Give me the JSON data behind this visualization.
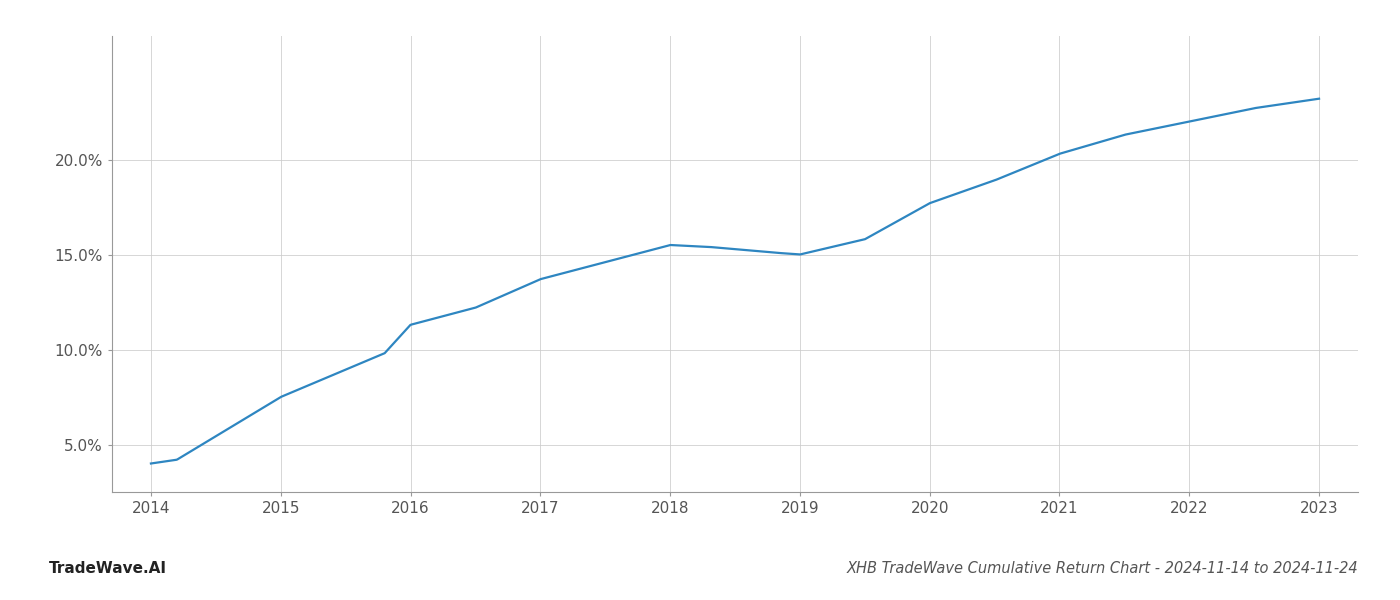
{
  "x_years": [
    2014,
    2014.2,
    2015,
    2015.8,
    2016,
    2016.5,
    2017,
    2017.5,
    2018,
    2018.3,
    2018.8,
    2019,
    2019.5,
    2020,
    2020.5,
    2021,
    2021.5,
    2022,
    2022.5,
    2023
  ],
  "y_values": [
    0.04,
    0.042,
    0.075,
    0.098,
    0.113,
    0.122,
    0.137,
    0.146,
    0.155,
    0.154,
    0.151,
    0.15,
    0.158,
    0.177,
    0.189,
    0.203,
    0.213,
    0.22,
    0.227,
    0.232
  ],
  "line_color": "#2e86c1",
  "line_width": 1.6,
  "title": "XHB TradeWave Cumulative Return Chart - 2024-11-14 to 2024-11-24",
  "watermark": "TradeWave.AI",
  "ylim_min": 0.025,
  "ylim_max": 0.265,
  "yticks": [
    0.05,
    0.1,
    0.15,
    0.2
  ],
  "ytick_labels": [
    "5.0%",
    "10.0%",
    "15.0%",
    "20.0%"
  ],
  "xticks": [
    2014,
    2015,
    2016,
    2017,
    2018,
    2019,
    2020,
    2021,
    2022,
    2023
  ],
  "xlim_min": 2013.7,
  "xlim_max": 2023.3,
  "background_color": "#ffffff",
  "grid_color": "#cccccc",
  "grid_alpha": 0.8,
  "title_fontsize": 10.5,
  "watermark_fontsize": 11,
  "tick_fontsize": 11,
  "spine_color": "#999999"
}
